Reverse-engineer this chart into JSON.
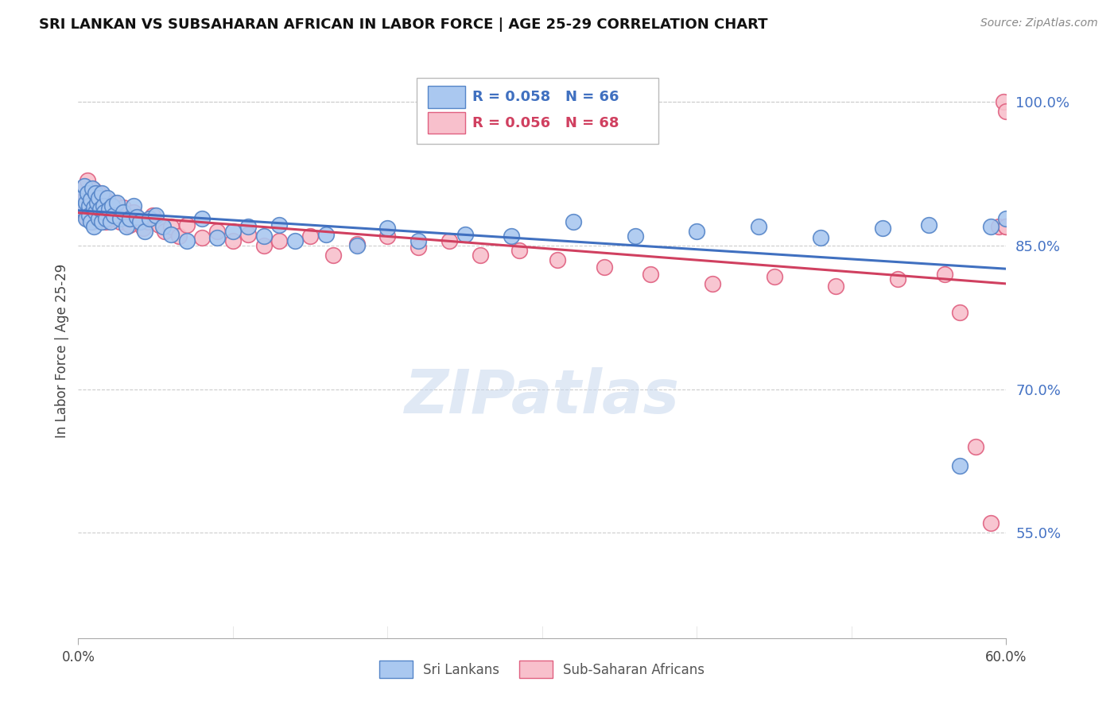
{
  "title": "SRI LANKAN VS SUBSAHARAN AFRICAN IN LABOR FORCE | AGE 25-29 CORRELATION CHART",
  "source_text": "Source: ZipAtlas.com",
  "ylabel": "In Labor Force | Age 25-29",
  "xmin": 0.0,
  "xmax": 0.6,
  "ymin": 0.44,
  "ymax": 1.04,
  "xtick_labels": [
    "0.0%",
    "60.0%"
  ],
  "ytick_vals": [
    0.55,
    0.7,
    0.85,
    1.0
  ],
  "ytick_labels": [
    "55.0%",
    "70.0%",
    "85.0%",
    "100.0%"
  ],
  "blue_color": "#aac8f0",
  "pink_color": "#f8c0cc",
  "blue_edge_color": "#5585c8",
  "pink_edge_color": "#e06080",
  "blue_line_color": "#4070c0",
  "pink_line_color": "#d04060",
  "legend_blue_r": "R = 0.058",
  "legend_blue_n": "N = 66",
  "legend_pink_r": "R = 0.056",
  "legend_pink_n": "N = 68",
  "watermark": "ZIPatlas",
  "sri_lankans_x": [
    0.002,
    0.003,
    0.004,
    0.005,
    0.005,
    0.006,
    0.007,
    0.007,
    0.008,
    0.008,
    0.009,
    0.01,
    0.01,
    0.011,
    0.011,
    0.012,
    0.013,
    0.013,
    0.014,
    0.015,
    0.015,
    0.016,
    0.017,
    0.018,
    0.019,
    0.02,
    0.021,
    0.022,
    0.023,
    0.025,
    0.027,
    0.029,
    0.031,
    0.033,
    0.036,
    0.038,
    0.04,
    0.043,
    0.046,
    0.05,
    0.055,
    0.06,
    0.07,
    0.08,
    0.09,
    0.1,
    0.11,
    0.12,
    0.13,
    0.14,
    0.16,
    0.18,
    0.2,
    0.22,
    0.25,
    0.28,
    0.32,
    0.36,
    0.4,
    0.44,
    0.48,
    0.52,
    0.55,
    0.57,
    0.59,
    0.6
  ],
  "sri_lankans_y": [
    0.9,
    0.888,
    0.912,
    0.895,
    0.878,
    0.905,
    0.892,
    0.882,
    0.898,
    0.875,
    0.91,
    0.89,
    0.87,
    0.905,
    0.885,
    0.895,
    0.9,
    0.878,
    0.888,
    0.905,
    0.875,
    0.892,
    0.885,
    0.878,
    0.9,
    0.888,
    0.875,
    0.892,
    0.882,
    0.895,
    0.878,
    0.885,
    0.87,
    0.878,
    0.892,
    0.88,
    0.875,
    0.865,
    0.878,
    0.882,
    0.87,
    0.862,
    0.855,
    0.878,
    0.858,
    0.865,
    0.87,
    0.86,
    0.872,
    0.855,
    0.862,
    0.85,
    0.868,
    0.855,
    0.862,
    0.86,
    0.875,
    0.86,
    0.865,
    0.87,
    0.858,
    0.868,
    0.872,
    0.62,
    0.87,
    0.878
  ],
  "subsaharan_x": [
    0.002,
    0.003,
    0.004,
    0.005,
    0.006,
    0.006,
    0.007,
    0.008,
    0.009,
    0.01,
    0.01,
    0.011,
    0.012,
    0.013,
    0.014,
    0.015,
    0.016,
    0.017,
    0.018,
    0.019,
    0.02,
    0.022,
    0.023,
    0.025,
    0.027,
    0.029,
    0.031,
    0.033,
    0.036,
    0.039,
    0.042,
    0.045,
    0.048,
    0.052,
    0.056,
    0.06,
    0.065,
    0.07,
    0.08,
    0.09,
    0.1,
    0.11,
    0.12,
    0.13,
    0.15,
    0.165,
    0.18,
    0.2,
    0.22,
    0.24,
    0.26,
    0.285,
    0.31,
    0.34,
    0.37,
    0.41,
    0.45,
    0.49,
    0.53,
    0.56,
    0.57,
    0.58,
    0.59,
    0.595,
    0.598,
    0.6,
    0.6,
    0.6
  ],
  "subsaharan_y": [
    0.895,
    0.91,
    0.885,
    0.9,
    0.918,
    0.878,
    0.905,
    0.89,
    0.875,
    0.908,
    0.885,
    0.898,
    0.878,
    0.905,
    0.888,
    0.895,
    0.882,
    0.9,
    0.875,
    0.892,
    0.885,
    0.878,
    0.895,
    0.882,
    0.875,
    0.89,
    0.878,
    0.872,
    0.885,
    0.878,
    0.868,
    0.875,
    0.882,
    0.872,
    0.865,
    0.87,
    0.86,
    0.872,
    0.858,
    0.865,
    0.855,
    0.862,
    0.85,
    0.855,
    0.86,
    0.84,
    0.852,
    0.86,
    0.848,
    0.855,
    0.84,
    0.845,
    0.835,
    0.828,
    0.82,
    0.81,
    0.818,
    0.808,
    0.815,
    0.82,
    0.78,
    0.64,
    0.56,
    0.87,
    1.0,
    0.99,
    0.87,
    0.87
  ]
}
